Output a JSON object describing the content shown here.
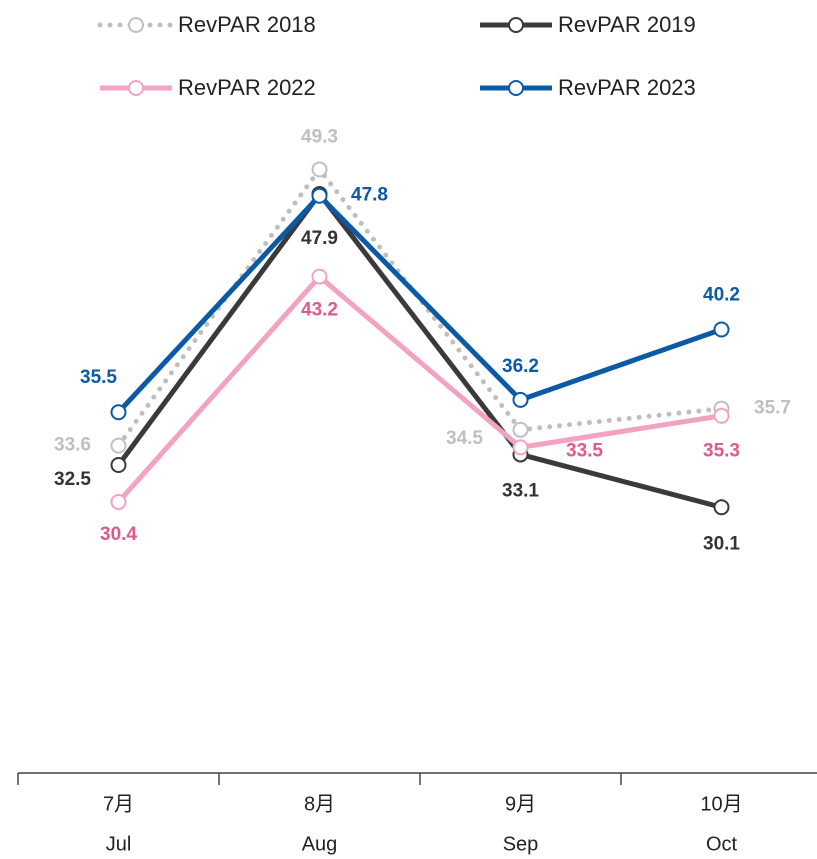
{
  "chart_data": {
    "type": "line",
    "categories": [
      [
        "7月",
        "Jul"
      ],
      [
        "8月",
        "Aug"
      ],
      [
        "9月",
        "Sep"
      ],
      [
        "10月",
        "Oct"
      ]
    ],
    "series": [
      {
        "name": "RevPAR 2018",
        "color": "#bfbfbf",
        "label_color": "#bfbfbf",
        "dash": "dotted",
        "values": [
          33.6,
          49.3,
          34.5,
          35.7
        ]
      },
      {
        "name": "RevPAR 2019",
        "color": "#3a3a3a",
        "label_color": "#333333",
        "values": [
          32.5,
          47.9,
          33.1,
          30.1
        ]
      },
      {
        "name": "RevPAR 2022",
        "color": "#f2a3c1",
        "label_color": "#e0598b",
        "values": [
          30.4,
          43.2,
          33.5,
          35.3
        ]
      },
      {
        "name": "RevPAR 2023",
        "color": "#0b5aa6",
        "label_color": "#0b5aa6",
        "values": [
          35.5,
          47.8,
          36.2,
          40.2
        ]
      }
    ],
    "ylim": [
      15,
      55
    ],
    "grid": false
  }
}
